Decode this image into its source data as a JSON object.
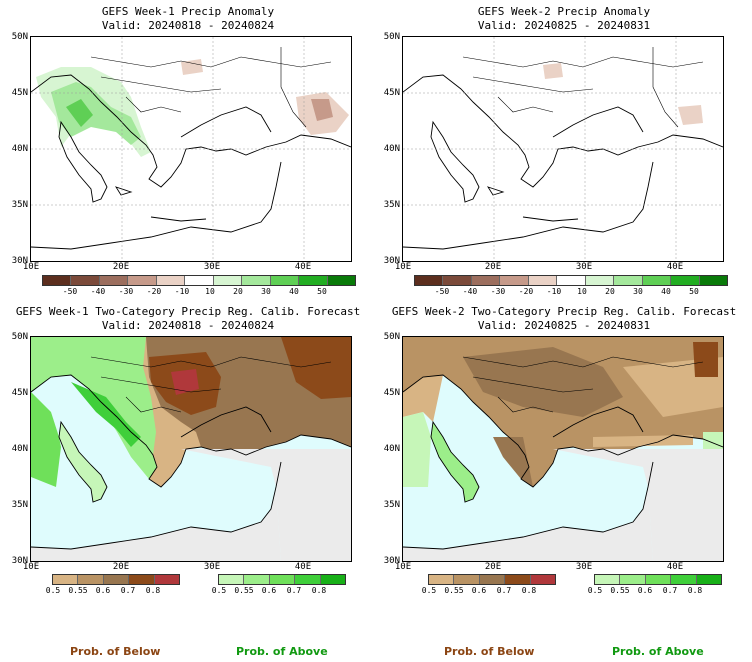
{
  "panels": [
    {
      "title_line1": "GEFS Week-1 Precip Anomaly",
      "title_line2": "Valid: 20240818 - 20240824"
    },
    {
      "title_line1": "GEFS Week-2 Precip Anomaly",
      "title_line2": "Valid: 20240825 - 20240831"
    },
    {
      "title_line1": "GEFS Week-1 Two-Category Precip Reg. Calib. Forecast",
      "title_line2": "Valid: 20240818 - 20240824"
    },
    {
      "title_line1": "GEFS Week-2 Two-Category Precip Reg. Calib. Forecast",
      "title_line2": "Valid: 20240825 - 20240831"
    }
  ],
  "axes": {
    "lat_labels": [
      "50N",
      "45N",
      "40N",
      "35N",
      "30N"
    ],
    "lon_labels": [
      "10E",
      "20E",
      "30E",
      "40E"
    ]
  },
  "anomaly_scale": {
    "labels": [
      "-50",
      "-40",
      "-30",
      "-20",
      "-10",
      "10",
      "20",
      "30",
      "40",
      "50"
    ],
    "colors": [
      "#5c2e1e",
      "#7b4a3a",
      "#9c6e5e",
      "#c69a8a",
      "#ead2c6",
      "#ffffff",
      "#d7f5d2",
      "#a4e89c",
      "#5fcf55",
      "#22ad22",
      "#097a09"
    ]
  },
  "prob_below_scale": {
    "labels": [
      "0.5",
      "0.55",
      "0.6",
      "0.7",
      "0.8"
    ],
    "colors": [
      "#d8b484",
      "#b99364",
      "#987650",
      "#8c4a1a",
      "#b0383b"
    ]
  },
  "prob_above_scale": {
    "labels": [
      "0.5",
      "0.55",
      "0.6",
      "0.7",
      "0.8"
    ],
    "colors": [
      "#c6f6b8",
      "#9cee8a",
      "#6fe05a",
      "#3fcf3a",
      "#18b018"
    ]
  },
  "colors": {
    "sea": "#dffcfd",
    "land_no_signal": "#ebebeb",
    "coast": "#000000",
    "prob_below_text": "#8b4513",
    "prob_above_text": "#119911"
  },
  "footer": {
    "prob_below_left": "Prob. of Below",
    "prob_above_left": "Prob. of Above",
    "prob_below_right": "Prob. of Below",
    "prob_above_right": "Prob. of Above"
  }
}
